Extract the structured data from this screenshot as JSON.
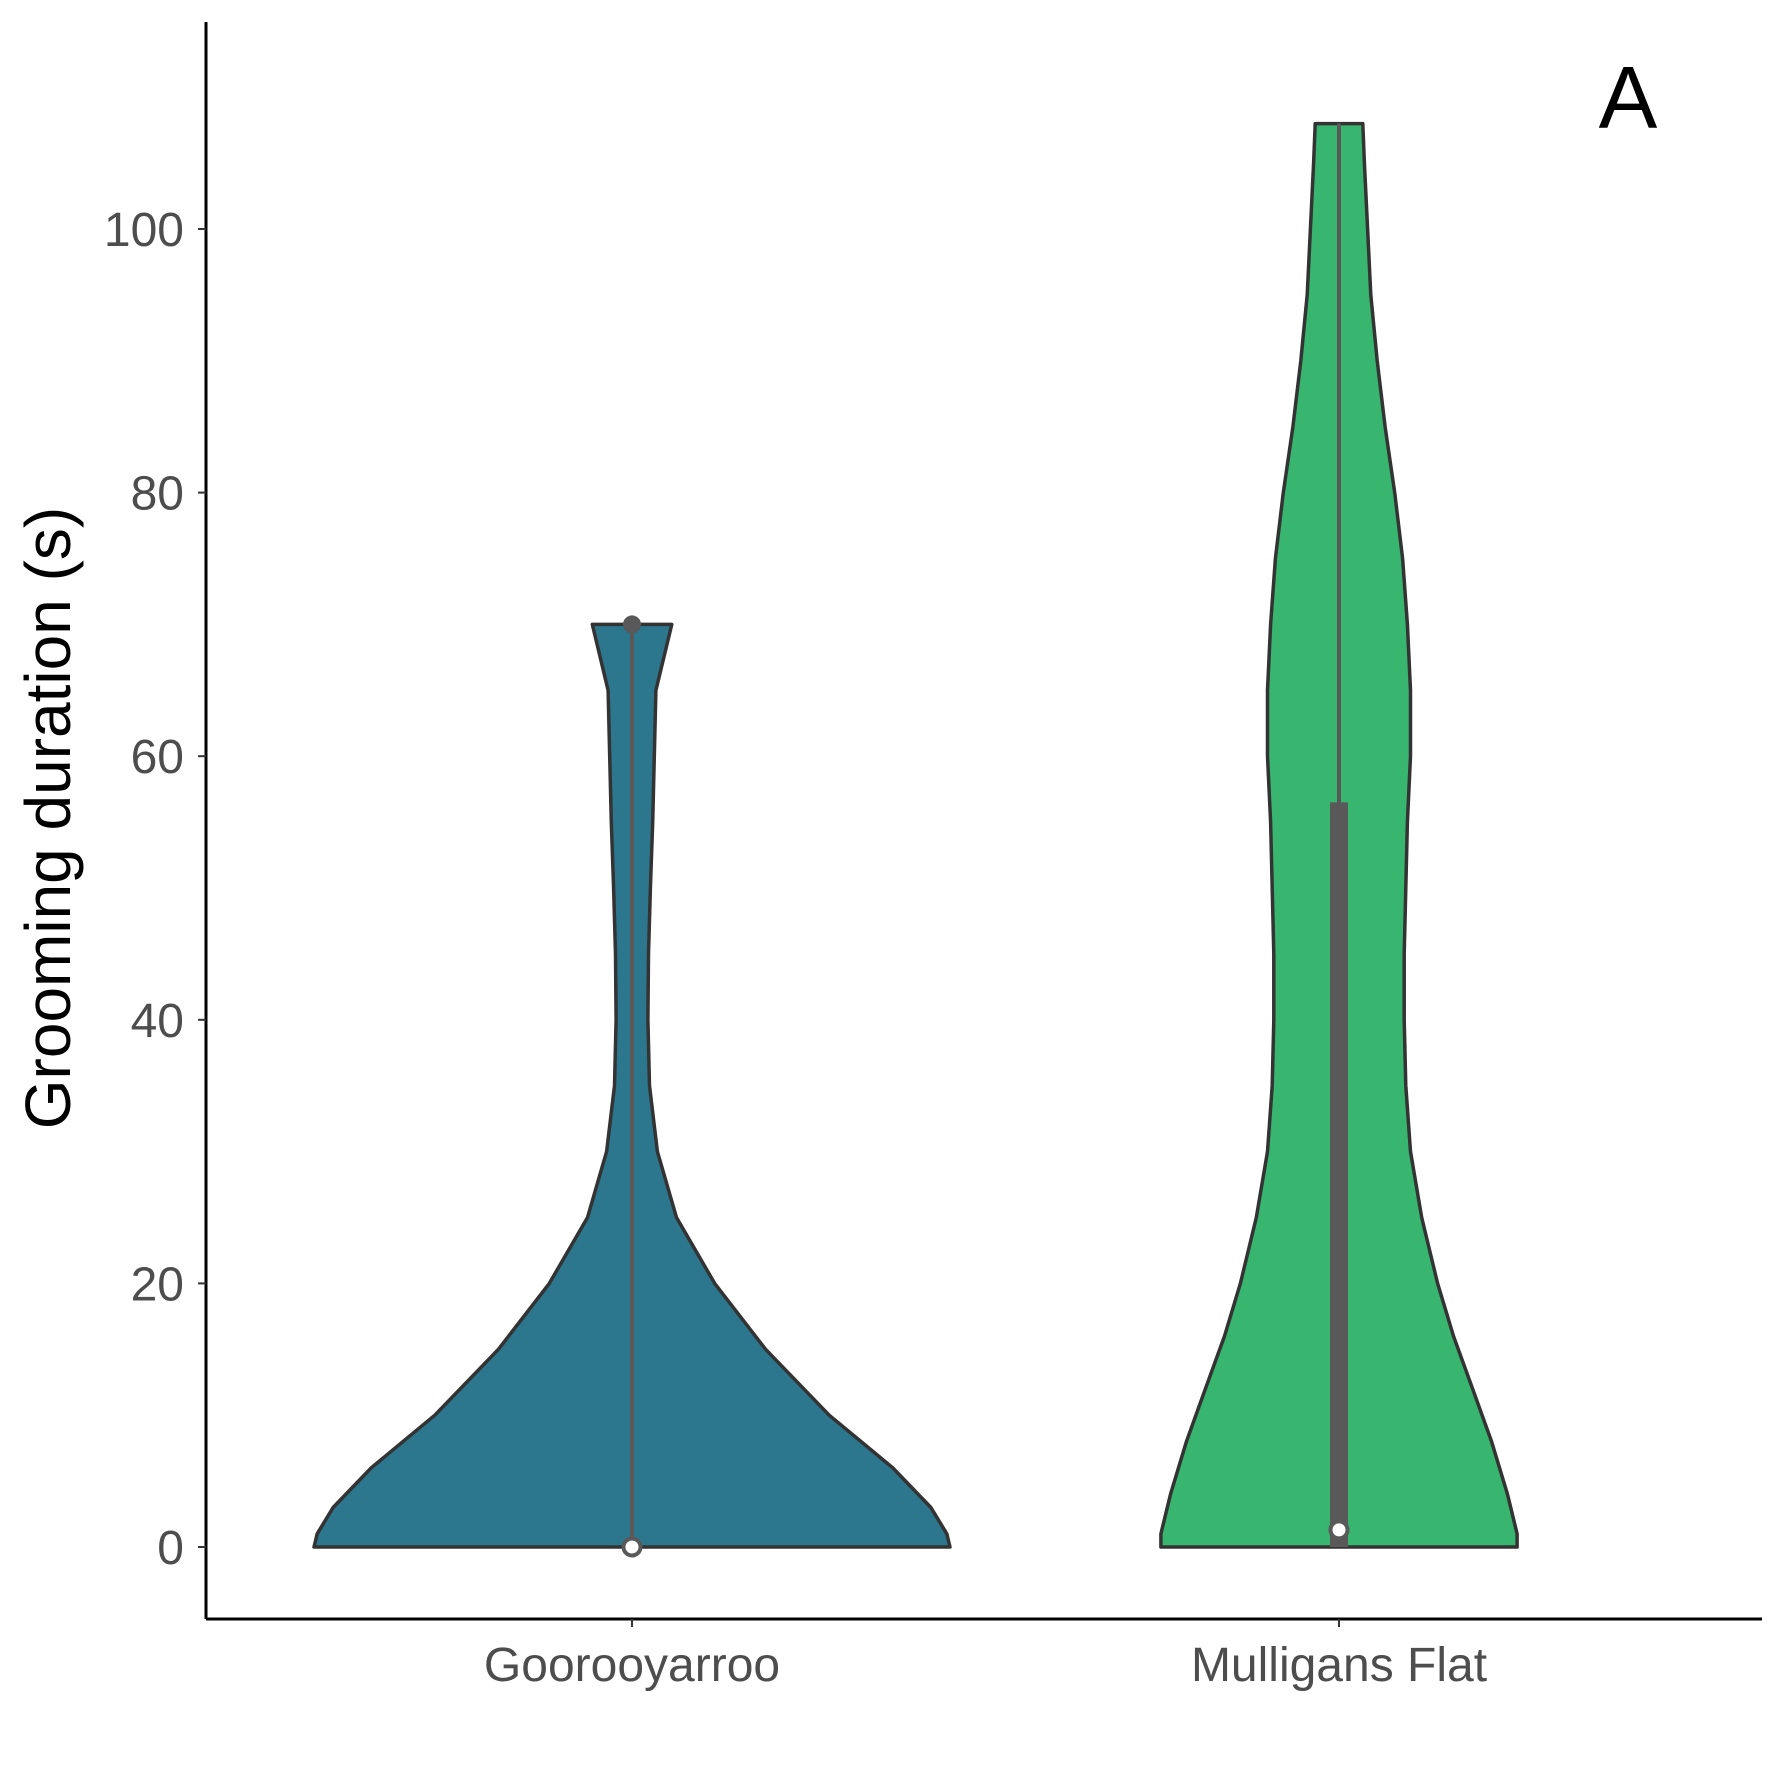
{
  "chart_data": {
    "type": "violin",
    "panel_label": "A",
    "xlabel": "",
    "ylabel": "Grooming duration (s)",
    "categories": [
      "Goorooyarroo",
      "Mulligans Flat"
    ],
    "y_ticks": [
      "0",
      "20",
      "40",
      "60",
      "80",
      "100"
    ],
    "ylim": [
      -5.5,
      115
    ],
    "grid": false,
    "colors": {
      "Goorooyarroo": "#2c778d",
      "Mulligans Flat": "#38b670"
    },
    "series": [
      {
        "category": "Goorooyarroo",
        "min": 0,
        "max": 70,
        "median": 0,
        "q1": 0,
        "q3": 0,
        "density_profile": [
          {
            "y": 0,
            "w": 1.0
          },
          {
            "y": 1,
            "w": 0.99
          },
          {
            "y": 3,
            "w": 0.94
          },
          {
            "y": 6,
            "w": 0.82
          },
          {
            "y": 10,
            "w": 0.62
          },
          {
            "y": 15,
            "w": 0.42
          },
          {
            "y": 20,
            "w": 0.26
          },
          {
            "y": 25,
            "w": 0.14
          },
          {
            "y": 30,
            "w": 0.08
          },
          {
            "y": 35,
            "w": 0.055
          },
          {
            "y": 40,
            "w": 0.05
          },
          {
            "y": 45,
            "w": 0.052
          },
          {
            "y": 50,
            "w": 0.058
          },
          {
            "y": 55,
            "w": 0.065
          },
          {
            "y": 60,
            "w": 0.07
          },
          {
            "y": 65,
            "w": 0.075
          },
          {
            "y": 70,
            "w": 0.125
          }
        ]
      },
      {
        "category": "Mulligans Flat",
        "min": 0,
        "max": 108,
        "median": 1.3,
        "q1": 0,
        "q3": 56.5,
        "density_profile": [
          {
            "y": 0,
            "w": 0.56
          },
          {
            "y": 1,
            "w": 0.56
          },
          {
            "y": 4,
            "w": 0.53
          },
          {
            "y": 8,
            "w": 0.48
          },
          {
            "y": 12,
            "w": 0.42
          },
          {
            "y": 16,
            "w": 0.36
          },
          {
            "y": 20,
            "w": 0.31
          },
          {
            "y": 25,
            "w": 0.26
          },
          {
            "y": 30,
            "w": 0.225
          },
          {
            "y": 35,
            "w": 0.21
          },
          {
            "y": 40,
            "w": 0.205
          },
          {
            "y": 45,
            "w": 0.205
          },
          {
            "y": 50,
            "w": 0.21
          },
          {
            "y": 55,
            "w": 0.215
          },
          {
            "y": 60,
            "w": 0.225
          },
          {
            "y": 65,
            "w": 0.225
          },
          {
            "y": 70,
            "w": 0.215
          },
          {
            "y": 75,
            "w": 0.2
          },
          {
            "y": 80,
            "w": 0.175
          },
          {
            "y": 85,
            "w": 0.145
          },
          {
            "y": 90,
            "w": 0.12
          },
          {
            "y": 95,
            "w": 0.1
          },
          {
            "y": 100,
            "w": 0.09
          },
          {
            "y": 105,
            "w": 0.08
          },
          {
            "y": 108,
            "w": 0.075
          }
        ]
      }
    ]
  }
}
